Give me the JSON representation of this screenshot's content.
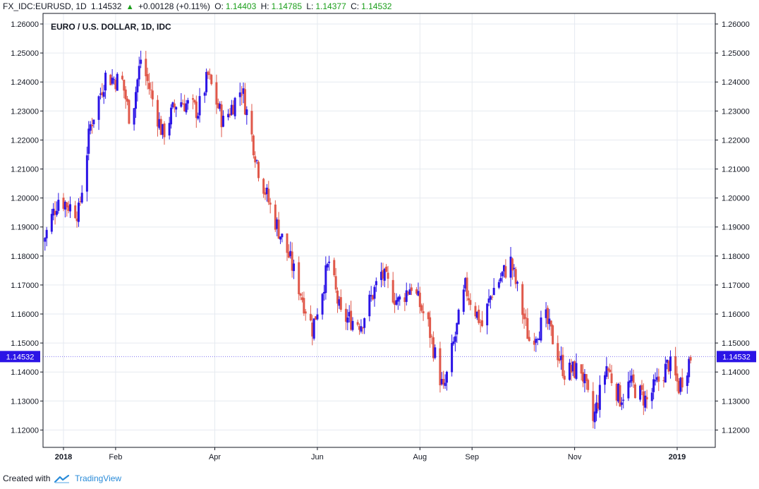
{
  "header": {
    "symbol": "FX_IDC:EURUSD, 1D",
    "last": "1.14532",
    "change": "+0.00128 (+0.11%)",
    "o_label": "O:",
    "o_value": "1.14403",
    "h_label": "H:",
    "h_value": "1.14785",
    "l_label": "L:",
    "l_value": "1.14377",
    "c_label": "C:",
    "c_value": "1.14532"
  },
  "footer": {
    "created_with": "Created with",
    "brand": "TradingView"
  },
  "colors": {
    "up": "#2b14e6",
    "down": "#e0584a",
    "accent": "#2b14e6",
    "grid": "#e6eaf0"
  },
  "chart_data": {
    "type": "candlestick",
    "title": "EURO / U.S. DOLLAR, 1D, IDC",
    "ylim": [
      1.115,
      1.2625
    ],
    "y_ticks": [
      "1.12000",
      "1.13000",
      "1.14000",
      "1.15000",
      "1.16000",
      "1.17000",
      "1.18000",
      "1.19000",
      "1.20000",
      "1.21000",
      "1.22000",
      "1.23000",
      "1.24000",
      "1.25000",
      "1.26000"
    ],
    "x_ticks": [
      {
        "label": "2018",
        "date": "2018-01-01"
      },
      {
        "label": "Feb",
        "date": "2018-02-01"
      },
      {
        "label": "Apr",
        "date": "2018-04-01"
      },
      {
        "label": "Jun",
        "date": "2018-06-01"
      },
      {
        "label": "Aug",
        "date": "2018-08-01"
      },
      {
        "label": "Sep",
        "date": "2018-09-01"
      },
      {
        "label": "Nov",
        "date": "2018-11-01"
      },
      {
        "label": "2019",
        "date": "2019-01-01"
      }
    ],
    "price_label": "1.14532",
    "price_value": 1.14532,
    "anchors": [
      {
        "date": "2017-12-20",
        "close": 1.185
      },
      {
        "date": "2017-12-29",
        "close": 1.2
      },
      {
        "date": "2018-01-10",
        "close": 1.195
      },
      {
        "date": "2018-01-17",
        "close": 1.225
      },
      {
        "date": "2018-01-26",
        "close": 1.242
      },
      {
        "date": "2018-02-05",
        "close": 1.24
      },
      {
        "date": "2018-02-10",
        "close": 1.226
      },
      {
        "date": "2018-02-16",
        "close": 1.248
      },
      {
        "date": "2018-03-01",
        "close": 1.222
      },
      {
        "date": "2018-03-10",
        "close": 1.234
      },
      {
        "date": "2018-03-22",
        "close": 1.23
      },
      {
        "date": "2018-03-28",
        "close": 1.242
      },
      {
        "date": "2018-04-06",
        "close": 1.226
      },
      {
        "date": "2018-04-17",
        "close": 1.238
      },
      {
        "date": "2018-04-27",
        "close": 1.21
      },
      {
        "date": "2018-05-05",
        "close": 1.195
      },
      {
        "date": "2018-05-15",
        "close": 1.18
      },
      {
        "date": "2018-05-29",
        "close": 1.155
      },
      {
        "date": "2018-06-08",
        "close": 1.178
      },
      {
        "date": "2018-06-15",
        "close": 1.159
      },
      {
        "date": "2018-06-27",
        "close": 1.157
      },
      {
        "date": "2018-07-09",
        "close": 1.174
      },
      {
        "date": "2018-07-19",
        "close": 1.164
      },
      {
        "date": "2018-07-27",
        "close": 1.17
      },
      {
        "date": "2018-08-06",
        "close": 1.156
      },
      {
        "date": "2018-08-15",
        "close": 1.133
      },
      {
        "date": "2018-08-28",
        "close": 1.169
      },
      {
        "date": "2018-09-07",
        "close": 1.156
      },
      {
        "date": "2018-09-13",
        "close": 1.168
      },
      {
        "date": "2018-09-24",
        "close": 1.178
      },
      {
        "date": "2018-10-05",
        "close": 1.151
      },
      {
        "date": "2018-10-15",
        "close": 1.158
      },
      {
        "date": "2018-10-26",
        "close": 1.14
      },
      {
        "date": "2018-11-05",
        "close": 1.141
      },
      {
        "date": "2018-11-12",
        "close": 1.123
      },
      {
        "date": "2018-11-20",
        "close": 1.142
      },
      {
        "date": "2018-11-28",
        "close": 1.131
      },
      {
        "date": "2018-12-04",
        "close": 1.136
      },
      {
        "date": "2018-12-14",
        "close": 1.13
      },
      {
        "date": "2018-12-27",
        "close": 1.143
      },
      {
        "date": "2019-01-02",
        "close": 1.135
      },
      {
        "date": "2019-01-09",
        "close": 1.1453
      }
    ]
  }
}
